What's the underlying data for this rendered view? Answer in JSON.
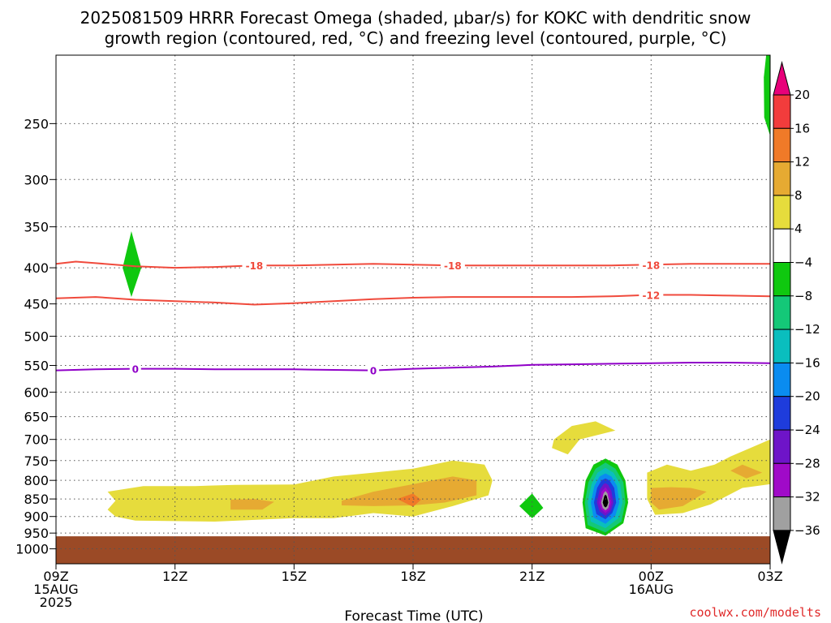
{
  "chart_data": {
    "type": "heatmap",
    "title_line1": "2025081509 HRRR Forecast Omega (shaded, μbar/s) for KOKC with dendritic snow",
    "title_line2": "growth region (contoured, red, °C) and freezing level (contoured, purple, °C)",
    "xlabel": "Forecast Time (UTC)",
    "credit": "coolwx.com/modelts",
    "colors": {
      "red_contour": "#f04a3c",
      "purple_contour": "#9000c8",
      "ground": "#9b4a26"
    },
    "x_ticks": [
      {
        "hour": 0,
        "lines": [
          "09Z",
          "15AUG",
          "2025"
        ]
      },
      {
        "hour": 3,
        "lines": [
          "12Z"
        ]
      },
      {
        "hour": 6,
        "lines": [
          "15Z"
        ]
      },
      {
        "hour": 9,
        "lines": [
          "18Z"
        ]
      },
      {
        "hour": 12,
        "lines": [
          "21Z"
        ]
      },
      {
        "hour": 15,
        "lines": [
          "00Z",
          "16AUG"
        ]
      },
      {
        "hour": 18,
        "lines": [
          "03Z"
        ]
      }
    ],
    "y_ticks": [
      250,
      300,
      350,
      400,
      450,
      500,
      550,
      600,
      650,
      700,
      750,
      800,
      850,
      900,
      950,
      1000
    ],
    "xlim": [
      0,
      18
    ],
    "ylim": [
      200,
      1050
    ],
    "colorbar": {
      "labels": [
        "20",
        "16",
        "12",
        "8",
        "4",
        "-4",
        "-8",
        "-12",
        "-16",
        "-20",
        "-24",
        "-28",
        "-32",
        "-36"
      ],
      "colors": [
        "#e8007a",
        "#f23c3c",
        "#f07a28",
        "#e6aa32",
        "#e6dc3c",
        "#ffffff",
        "#0fc80f",
        "#14c878",
        "#0abebe",
        "#0a8cf0",
        "#1e3cdc",
        "#6e14c8",
        "#a00ac8",
        "#a0a0a0",
        "#000000"
      ]
    },
    "contours": [
      {
        "kind": "dgz",
        "level": -18,
        "label": "-18",
        "points": [
          [
            0,
            395
          ],
          [
            0.5,
            392
          ],
          [
            1,
            394
          ],
          [
            2,
            398
          ],
          [
            3,
            400
          ],
          [
            4,
            399
          ],
          [
            5,
            397
          ],
          [
            6,
            397
          ],
          [
            7,
            396
          ],
          [
            8,
            395
          ],
          [
            9,
            396
          ],
          [
            10,
            397
          ],
          [
            11,
            397
          ],
          [
            12,
            397
          ],
          [
            13,
            397
          ],
          [
            14,
            397
          ],
          [
            15,
            396
          ],
          [
            16,
            395
          ],
          [
            17,
            395
          ],
          [
            18,
            395
          ]
        ],
        "label_hours": [
          5,
          10,
          15
        ]
      },
      {
        "kind": "dgz",
        "level": -12,
        "label": "-12",
        "points": [
          [
            0,
            442
          ],
          [
            1,
            440
          ],
          [
            2,
            444
          ],
          [
            3,
            446
          ],
          [
            4,
            448
          ],
          [
            5,
            451
          ],
          [
            6,
            449
          ],
          [
            7,
            446
          ],
          [
            8,
            443
          ],
          [
            9,
            441
          ],
          [
            10,
            440
          ],
          [
            11,
            440
          ],
          [
            12,
            440
          ],
          [
            13,
            440
          ],
          [
            14,
            439
          ],
          [
            15,
            437
          ],
          [
            16,
            437
          ],
          [
            17,
            438
          ],
          [
            18,
            439
          ]
        ],
        "label_hours": [
          15
        ]
      },
      {
        "kind": "frz",
        "level": 0,
        "label": "0",
        "points": [
          [
            0,
            559
          ],
          [
            1,
            557
          ],
          [
            2,
            556
          ],
          [
            3,
            556
          ],
          [
            4,
            557
          ],
          [
            5,
            557
          ],
          [
            6,
            557
          ],
          [
            7,
            558
          ],
          [
            8,
            559
          ],
          [
            9,
            556
          ],
          [
            10,
            554
          ],
          [
            11,
            552
          ],
          [
            12,
            549
          ],
          [
            13,
            548
          ],
          [
            14,
            547
          ],
          [
            15,
            546
          ],
          [
            16,
            545
          ],
          [
            17,
            545
          ],
          [
            18,
            546
          ]
        ],
        "label_hours": [
          2,
          8
        ]
      }
    ],
    "shaded_regions": [
      {
        "value": 4,
        "points": [
          [
            1.3,
            830
          ],
          [
            2.2,
            815
          ],
          [
            3.5,
            815
          ],
          [
            4.5,
            812
          ],
          [
            6,
            811
          ],
          [
            7,
            790
          ],
          [
            8,
            780
          ],
          [
            9,
            770
          ],
          [
            10,
            750
          ],
          [
            10.8,
            760
          ],
          [
            11,
            800
          ],
          [
            10.9,
            840
          ],
          [
            10,
            870
          ],
          [
            9,
            900
          ],
          [
            8,
            890
          ],
          [
            7,
            905
          ],
          [
            6,
            905
          ],
          [
            4,
            915
          ],
          [
            2,
            912
          ],
          [
            1.5,
            900
          ],
          [
            1.3,
            880
          ],
          [
            1.5,
            855
          ]
        ]
      },
      {
        "value": 8,
        "points": [
          [
            4.4,
            852
          ],
          [
            5.0,
            850
          ],
          [
            5.5,
            858
          ],
          [
            5.2,
            880
          ],
          [
            4.4,
            880
          ]
        ]
      },
      {
        "value": 8,
        "points": [
          [
            7.2,
            855
          ],
          [
            8,
            830
          ],
          [
            9,
            810
          ],
          [
            10,
            790
          ],
          [
            10.6,
            800
          ],
          [
            10.6,
            840
          ],
          [
            9.8,
            860
          ],
          [
            9,
            868
          ],
          [
            8,
            870
          ],
          [
            7.2,
            868
          ]
        ]
      },
      {
        "value": 12,
        "points": [
          [
            8.6,
            850
          ],
          [
            9,
            835
          ],
          [
            9.2,
            852
          ],
          [
            9,
            872
          ]
        ]
      },
      {
        "value": 4,
        "points": [
          [
            12.55,
            700
          ],
          [
            13.0,
            670
          ],
          [
            13.6,
            660
          ],
          [
            14.1,
            680
          ],
          [
            13.2,
            700
          ],
          [
            12.9,
            735
          ],
          [
            12.5,
            720
          ]
        ]
      },
      {
        "value": 4,
        "points": [
          [
            14.9,
            780
          ],
          [
            15.4,
            760
          ],
          [
            16,
            775
          ],
          [
            16.6,
            760
          ],
          [
            17.0,
            740
          ],
          [
            17.5,
            720
          ],
          [
            18,
            700
          ],
          [
            18,
            810
          ],
          [
            17.3,
            820
          ],
          [
            16.5,
            865
          ],
          [
            15.8,
            890
          ],
          [
            15.1,
            895
          ],
          [
            14.9,
            850
          ],
          [
            14.9,
            815
          ]
        ]
      },
      {
        "value": 8,
        "points": [
          [
            15,
            820
          ],
          [
            15.5,
            818
          ],
          [
            16,
            820
          ],
          [
            16.4,
            830
          ],
          [
            15.8,
            870
          ],
          [
            15.2,
            880
          ],
          [
            15,
            860
          ]
        ]
      },
      {
        "value": 8,
        "points": [
          [
            17.0,
            775
          ],
          [
            17.3,
            760
          ],
          [
            17.8,
            780
          ],
          [
            17.4,
            795
          ]
        ]
      },
      {
        "value": -4,
        "points": [
          [
            1.68,
            400
          ],
          [
            1.9,
            355
          ],
          [
            2.15,
            400
          ],
          [
            1.9,
            440
          ]
        ]
      },
      {
        "value": -4,
        "points": [
          [
            11.68,
            870
          ],
          [
            12.0,
            835
          ],
          [
            12.28,
            875
          ],
          [
            12,
            905
          ]
        ]
      },
      {
        "value": -4,
        "points": [
          [
            17.9,
            200
          ],
          [
            18,
            200
          ],
          [
            18,
            260
          ],
          [
            17.85,
            245
          ],
          [
            17.84,
            215
          ]
        ]
      },
      {
        "value": -4,
        "points": [
          [
            13.27,
            860
          ],
          [
            13.35,
            800
          ],
          [
            13.55,
            760
          ],
          [
            13.85,
            745
          ],
          [
            14.15,
            760
          ],
          [
            14.35,
            800
          ],
          [
            14.42,
            860
          ],
          [
            14.3,
            920
          ],
          [
            13.85,
            958
          ],
          [
            13.35,
            935
          ]
        ]
      },
      {
        "value": -8,
        "points": [
          [
            13.33,
            860
          ],
          [
            13.42,
            805
          ],
          [
            13.6,
            770
          ],
          [
            13.85,
            755
          ],
          [
            14.1,
            770
          ],
          [
            14.3,
            805
          ],
          [
            14.35,
            860
          ],
          [
            14.25,
            915
          ],
          [
            13.85,
            948
          ],
          [
            13.4,
            925
          ]
        ]
      },
      {
        "value": -12,
        "points": [
          [
            13.4,
            860
          ],
          [
            13.5,
            810
          ],
          [
            13.65,
            780
          ],
          [
            13.85,
            768
          ],
          [
            14.05,
            780
          ],
          [
            14.22,
            810
          ],
          [
            14.28,
            860
          ],
          [
            14.18,
            905
          ],
          [
            13.85,
            935
          ],
          [
            13.48,
            915
          ]
        ]
      },
      {
        "value": -16,
        "points": [
          [
            13.48,
            860
          ],
          [
            13.57,
            815
          ],
          [
            13.7,
            790
          ],
          [
            13.85,
            782
          ],
          [
            14.0,
            790
          ],
          [
            14.14,
            815
          ],
          [
            14.2,
            860
          ],
          [
            14.1,
            897
          ],
          [
            13.85,
            922
          ],
          [
            13.55,
            903
          ]
        ]
      },
      {
        "value": -20,
        "points": [
          [
            13.56,
            860
          ],
          [
            13.64,
            820
          ],
          [
            13.75,
            800
          ],
          [
            13.85,
            795
          ],
          [
            13.95,
            800
          ],
          [
            14.07,
            820
          ],
          [
            14.12,
            860
          ],
          [
            14.02,
            890
          ],
          [
            13.85,
            908
          ],
          [
            13.62,
            893
          ]
        ]
      },
      {
        "value": -24,
        "points": [
          [
            13.63,
            860
          ],
          [
            13.7,
            825
          ],
          [
            13.8,
            810
          ],
          [
            13.85,
            807
          ],
          [
            13.92,
            812
          ],
          [
            14.0,
            828
          ],
          [
            14.05,
            860
          ],
          [
            13.98,
            885
          ],
          [
            13.85,
            898
          ],
          [
            13.7,
            885
          ]
        ]
      },
      {
        "value": -28,
        "points": [
          [
            13.69,
            860
          ],
          [
            13.75,
            830
          ],
          [
            13.85,
            818
          ],
          [
            13.95,
            832
          ],
          [
            14.0,
            860
          ],
          [
            13.95,
            880
          ],
          [
            13.85,
            890
          ],
          [
            13.74,
            878
          ]
        ]
      },
      {
        "value": -32,
        "points": [
          [
            13.74,
            860
          ],
          [
            13.8,
            835
          ],
          [
            13.85,
            828
          ],
          [
            13.9,
            835
          ],
          [
            13.95,
            860
          ],
          [
            13.92,
            875
          ],
          [
            13.85,
            882
          ],
          [
            13.78,
            875
          ]
        ]
      },
      {
        "value": -36,
        "points": [
          [
            13.78,
            860
          ],
          [
            13.82,
            842
          ],
          [
            13.85,
            838
          ],
          [
            13.88,
            842
          ],
          [
            13.92,
            860
          ],
          [
            13.89,
            870
          ],
          [
            13.85,
            874
          ],
          [
            13.81,
            870
          ]
        ]
      }
    ],
    "ground_top_hpa": 960
  }
}
